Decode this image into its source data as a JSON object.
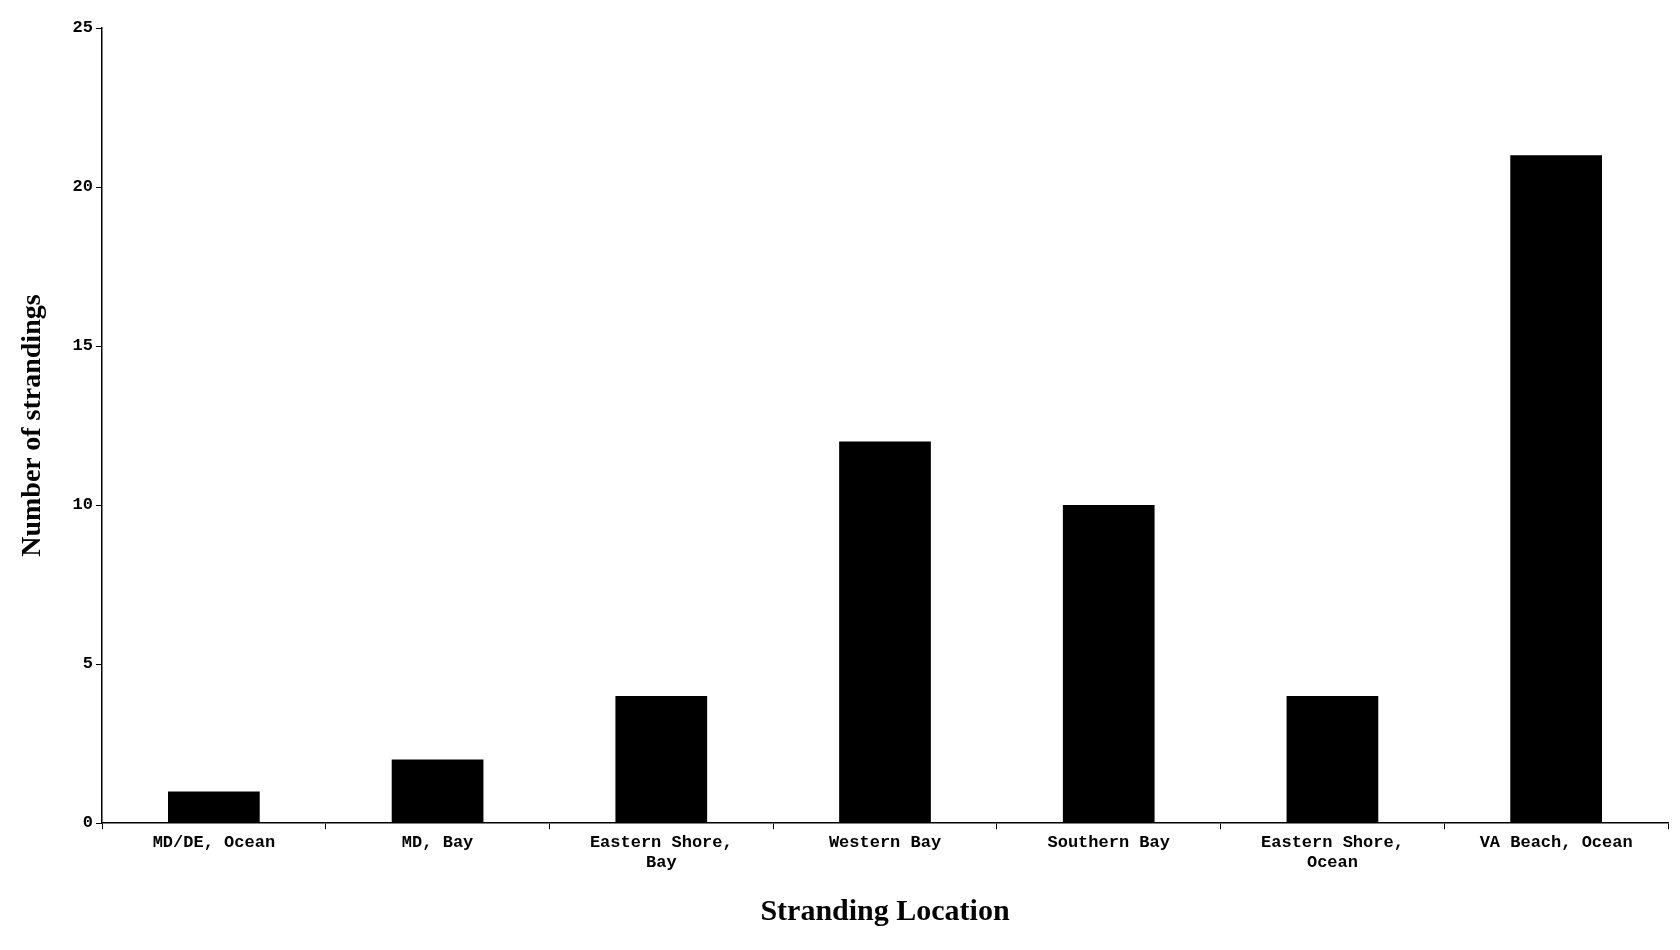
{
  "chart_data": {
    "type": "bar",
    "xlabel": "Stranding Location",
    "ylabel": "Number of strandings",
    "categories": [
      "MD/DE, Ocean",
      "MD, Bay",
      "Eastern Shore, Bay",
      "Western Bay",
      "Southern Bay",
      "Eastern Shore, Ocean",
      "VA Beach, Ocean"
    ],
    "values": [
      1,
      2,
      4,
      12,
      10,
      4,
      21
    ],
    "color": "#000000",
    "ylim": [
      0,
      25
    ],
    "yticks": [
      0,
      5,
      10,
      15,
      20,
      25
    ],
    "grid": false,
    "legend": false
  }
}
